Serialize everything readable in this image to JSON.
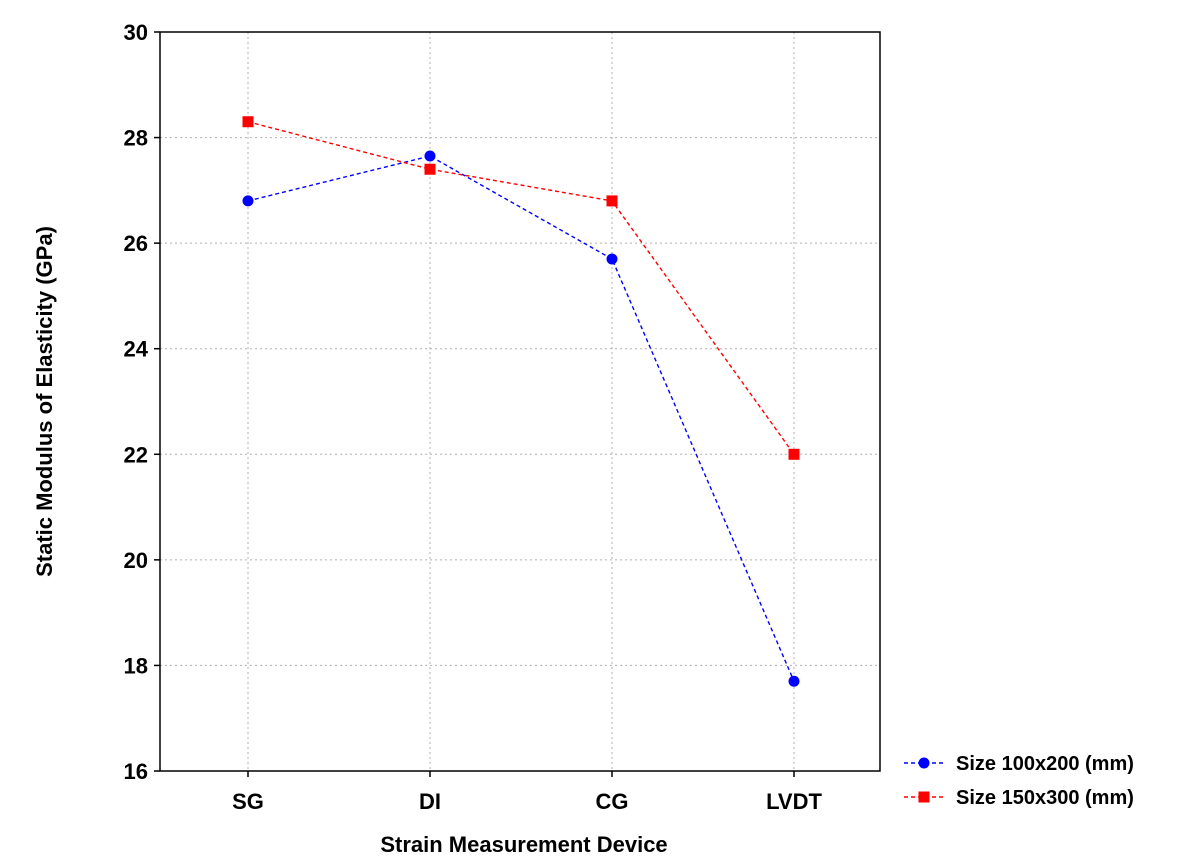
{
  "chart_data": {
    "type": "line",
    "xlabel": "Strain Measurement Device",
    "ylabel": "Static Modulus of Elasticity (GPa)",
    "categories": [
      "SG",
      "DI",
      "CG",
      "LVDT"
    ],
    "ylim": [
      16,
      30
    ],
    "yticks": [
      "16",
      "18",
      "20",
      "22",
      "24",
      "26",
      "28",
      "30"
    ],
    "grid": true,
    "legend_position": "bottom-right",
    "series": [
      {
        "name": "Size 100x200 (mm)",
        "values": [
          26.8,
          27.65,
          25.7,
          17.7
        ],
        "color": "#0000ff",
        "marker": "circle",
        "line_style": "dashed"
      },
      {
        "name": "Size 150x300 (mm)",
        "values": [
          28.3,
          27.4,
          26.8,
          22.0
        ],
        "color": "#ff0000",
        "marker": "square",
        "line_style": "dashed"
      }
    ]
  }
}
